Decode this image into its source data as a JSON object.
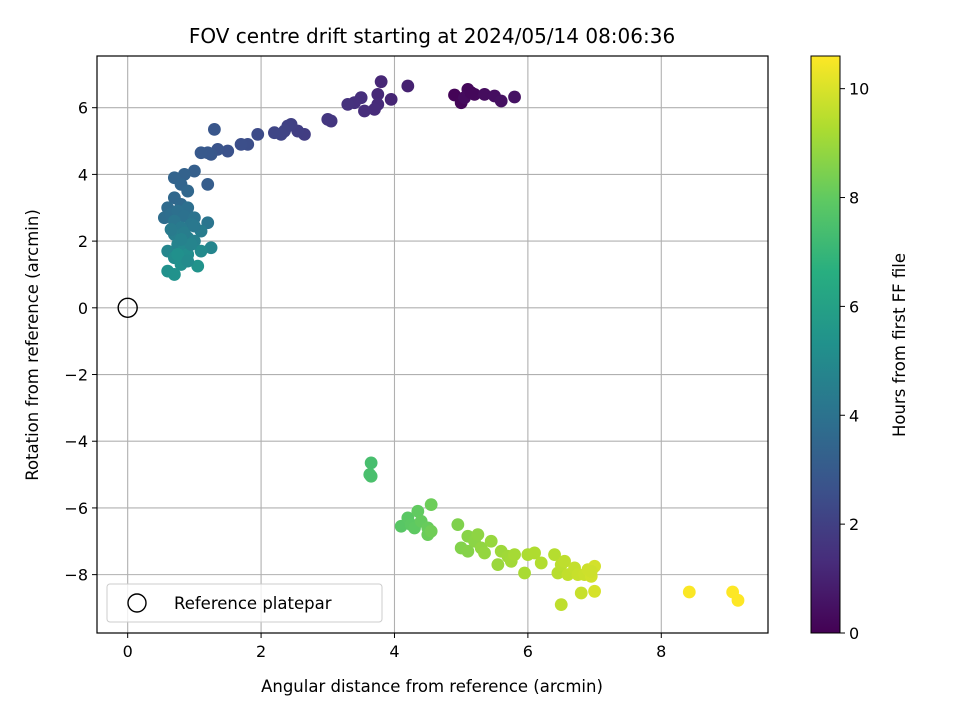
{
  "chart_data": {
    "type": "scatter",
    "title": "FOV centre drift starting at 2024/05/14 08:06:36",
    "xlabel": "Angular distance from reference (arcmin)",
    "ylabel": "Rotation from reference (arcmin)",
    "xlim": [
      -0.46,
      9.6
    ],
    "ylim": [
      -9.75,
      7.55
    ],
    "xticks": [
      0,
      2,
      4,
      6,
      8
    ],
    "xtick_labels": [
      "0",
      "2",
      "4",
      "6",
      "8"
    ],
    "yticks": [
      -8,
      -6,
      -4,
      -2,
      0,
      2,
      4,
      6
    ],
    "ytick_labels": [
      "−8",
      "−6",
      "−4",
      "−2",
      "0",
      "2",
      "4",
      "6"
    ],
    "grid": true,
    "colormap": "viridis",
    "colorbar": {
      "label": "Hours from first FF file",
      "range": [
        0,
        10.6
      ],
      "ticks": [
        0,
        2,
        4,
        6,
        8,
        10
      ],
      "tick_labels": [
        "0",
        "2",
        "4",
        "6",
        "8",
        "10"
      ]
    },
    "legend": {
      "placement": "lower-left",
      "entries": [
        {
          "label": "Reference platepar",
          "marker": "open-circle"
        }
      ]
    },
    "reference_point": {
      "x": 0,
      "y": 0
    },
    "series": [
      {
        "points": [
          [
            4.9,
            6.38,
            0.1
          ],
          [
            5.0,
            6.15,
            0.15
          ],
          [
            5.1,
            6.55,
            0.2
          ],
          [
            5.2,
            6.4,
            0.25
          ],
          [
            5.35,
            6.4,
            0.35
          ],
          [
            5.5,
            6.35,
            0.4
          ],
          [
            5.6,
            6.2,
            0.45
          ],
          [
            5.8,
            6.32,
            0.5
          ],
          [
            5.05,
            6.3,
            0.3
          ],
          [
            5.15,
            6.45,
            0.22
          ],
          [
            4.2,
            6.65,
            1.0
          ],
          [
            3.95,
            6.25,
            1.1
          ],
          [
            3.8,
            6.78,
            1.15
          ],
          [
            3.75,
            6.4,
            1.2
          ],
          [
            3.75,
            6.1,
            1.25
          ],
          [
            3.7,
            5.95,
            1.3
          ],
          [
            3.55,
            5.9,
            1.35
          ],
          [
            3.5,
            6.3,
            1.4
          ],
          [
            3.4,
            6.15,
            1.45
          ],
          [
            3.3,
            6.1,
            1.5
          ],
          [
            3.05,
            5.6,
            1.65
          ],
          [
            3.0,
            5.65,
            1.7
          ],
          [
            2.65,
            5.2,
            1.9
          ],
          [
            2.55,
            5.3,
            1.95
          ],
          [
            2.45,
            5.5,
            2.0
          ],
          [
            2.4,
            5.45,
            2.05
          ],
          [
            2.35,
            5.3,
            2.1
          ],
          [
            2.3,
            5.2,
            2.15
          ],
          [
            2.2,
            5.25,
            2.2
          ],
          [
            1.95,
            5.2,
            2.4
          ],
          [
            1.8,
            4.9,
            2.5
          ],
          [
            1.7,
            4.9,
            2.55
          ],
          [
            1.5,
            4.7,
            2.65
          ],
          [
            1.35,
            4.75,
            2.75
          ],
          [
            1.3,
            5.35,
            2.8
          ],
          [
            1.25,
            4.6,
            2.85
          ],
          [
            1.2,
            4.65,
            2.9
          ],
          [
            1.1,
            4.65,
            2.95
          ],
          [
            1.2,
            3.7,
            3.1
          ],
          [
            1.0,
            4.1,
            3.2
          ],
          [
            0.85,
            4.0,
            3.3
          ],
          [
            0.7,
            3.9,
            3.4
          ],
          [
            0.8,
            3.7,
            3.45
          ],
          [
            0.9,
            3.5,
            3.5
          ],
          [
            0.7,
            3.3,
            3.55
          ],
          [
            0.8,
            3.1,
            3.6
          ],
          [
            0.6,
            3.0,
            3.7
          ],
          [
            0.55,
            2.7,
            3.75
          ],
          [
            0.65,
            2.8,
            3.8
          ],
          [
            0.9,
            3.0,
            3.85
          ],
          [
            0.75,
            2.9,
            3.9
          ],
          [
            0.85,
            2.75,
            3.95
          ],
          [
            1.0,
            2.7,
            4.0
          ],
          [
            1.2,
            2.55,
            4.1
          ],
          [
            0.7,
            2.6,
            4.15
          ],
          [
            0.95,
            2.5,
            4.2
          ],
          [
            0.8,
            2.4,
            4.3
          ],
          [
            1.1,
            2.3,
            4.4
          ],
          [
            0.7,
            2.2,
            4.5
          ],
          [
            0.9,
            2.1,
            4.55
          ],
          [
            1.0,
            2.0,
            4.6
          ],
          [
            0.75,
            1.9,
            4.7
          ],
          [
            1.25,
            1.8,
            4.8
          ],
          [
            0.6,
            1.7,
            4.85
          ],
          [
            0.85,
            1.8,
            4.9
          ],
          [
            1.1,
            1.7,
            5.0
          ],
          [
            0.7,
            1.5,
            5.1
          ],
          [
            0.9,
            1.6,
            5.15
          ],
          [
            0.8,
            1.3,
            5.2
          ],
          [
            0.6,
            1.1,
            5.3
          ],
          [
            0.7,
            1.0,
            5.35
          ],
          [
            1.05,
            1.25,
            5.4
          ],
          [
            0.75,
            1.6,
            5.25
          ],
          [
            0.95,
            1.9,
            4.75
          ],
          [
            0.85,
            2.25,
            4.45
          ],
          [
            1.0,
            2.45,
            4.25
          ],
          [
            0.65,
            2.35,
            4.35
          ],
          [
            0.8,
            2.05,
            4.65
          ],
          [
            0.9,
            1.4,
            5.05
          ],
          [
            3.65,
            -4.65,
            7.4
          ],
          [
            3.65,
            -5.05,
            7.5
          ],
          [
            3.63,
            -5.0,
            7.45
          ],
          [
            4.1,
            -6.55,
            7.8
          ],
          [
            4.2,
            -6.3,
            7.85
          ],
          [
            4.25,
            -6.5,
            7.9
          ],
          [
            4.3,
            -6.6,
            7.95
          ],
          [
            4.35,
            -6.1,
            8.0
          ],
          [
            4.4,
            -6.4,
            8.05
          ],
          [
            4.5,
            -6.6,
            8.1
          ],
          [
            4.5,
            -6.8,
            8.15
          ],
          [
            4.55,
            -5.9,
            8.2
          ],
          [
            4.55,
            -6.7,
            8.25
          ],
          [
            4.95,
            -6.5,
            8.5
          ],
          [
            5.0,
            -7.2,
            8.55
          ],
          [
            5.1,
            -7.3,
            8.6
          ],
          [
            5.1,
            -6.85,
            8.65
          ],
          [
            5.2,
            -7.0,
            8.7
          ],
          [
            5.25,
            -6.8,
            8.75
          ],
          [
            5.3,
            -7.2,
            8.8
          ],
          [
            5.35,
            -7.35,
            8.85
          ],
          [
            5.45,
            -7.0,
            8.9
          ],
          [
            5.55,
            -7.7,
            8.95
          ],
          [
            5.6,
            -7.3,
            9.0
          ],
          [
            5.7,
            -7.45,
            9.05
          ],
          [
            5.75,
            -7.6,
            9.1
          ],
          [
            5.8,
            -7.4,
            9.15
          ],
          [
            5.95,
            -7.95,
            9.2
          ],
          [
            6.0,
            -7.4,
            9.25
          ],
          [
            6.1,
            -7.35,
            9.3
          ],
          [
            6.2,
            -7.65,
            9.35
          ],
          [
            6.4,
            -7.4,
            9.4
          ],
          [
            6.45,
            -7.95,
            9.45
          ],
          [
            6.5,
            -7.7,
            9.5
          ],
          [
            6.55,
            -7.6,
            9.55
          ],
          [
            6.6,
            -8.0,
            9.6
          ],
          [
            6.7,
            -7.8,
            9.65
          ],
          [
            6.75,
            -8.0,
            9.7
          ],
          [
            6.85,
            -8.0,
            9.75
          ],
          [
            6.9,
            -7.85,
            9.8
          ],
          [
            6.95,
            -8.05,
            9.85
          ],
          [
            7.0,
            -7.75,
            9.9
          ],
          [
            6.5,
            -8.9,
            9.55
          ],
          [
            6.8,
            -8.55,
            9.7
          ],
          [
            7.0,
            -8.5,
            9.95
          ],
          [
            6.95,
            -7.9,
            9.8
          ],
          [
            8.42,
            -8.52,
            10.55
          ],
          [
            9.07,
            -8.52,
            10.6
          ],
          [
            9.15,
            -8.77,
            10.6
          ]
        ]
      }
    ]
  }
}
